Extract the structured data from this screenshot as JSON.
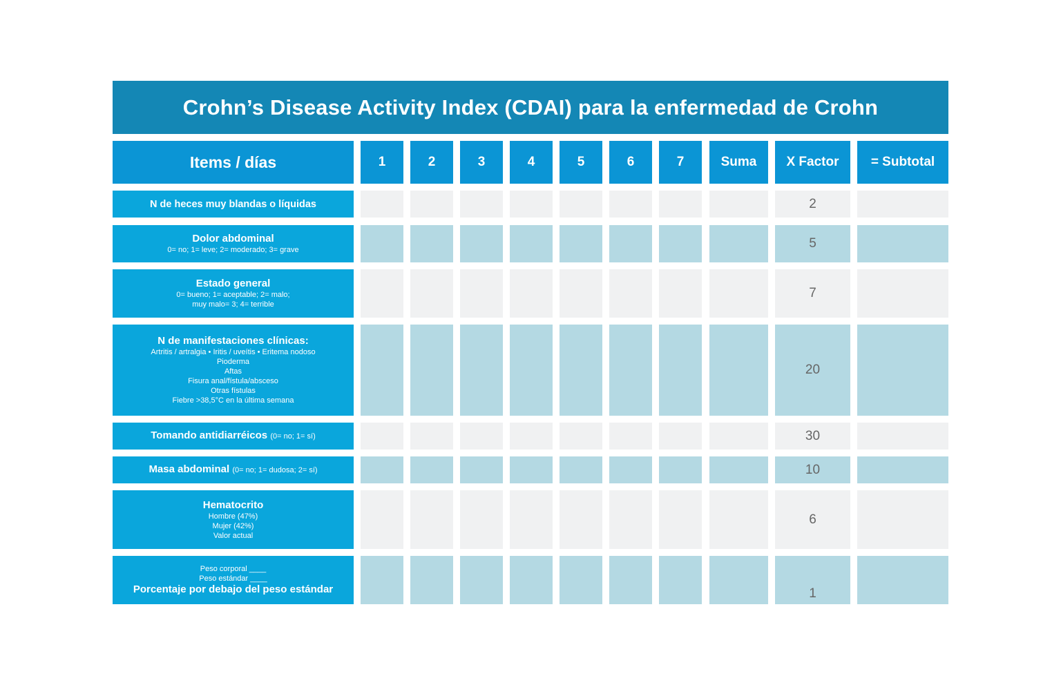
{
  "title": "Crohn’s Disease Activity Index (CDAI) para la enfermedad de Crohn",
  "columns": {
    "items": "Items / días",
    "days": [
      "1",
      "2",
      "3",
      "4",
      "5",
      "6",
      "7"
    ],
    "suma": "Suma",
    "factor": "X Factor",
    "subtotal": "= Subtotal"
  },
  "rows": [
    {
      "label": "N de heces muy blandas o líquidas",
      "note": "",
      "sub": [],
      "factor": "2"
    },
    {
      "label": "Dolor abdominal",
      "note": "",
      "sub": [
        "0= no; 1= leve; 2= moderado; 3= grave"
      ],
      "factor": "5"
    },
    {
      "label": "Estado general",
      "note": "",
      "sub": [
        "0= bueno; 1= aceptable; 2= malo;",
        "muy malo= 3; 4= terrible"
      ],
      "factor": "7"
    },
    {
      "label": "N de manifestaciones clínicas:",
      "note": "",
      "sub": [
        "Artritis / artralgia • Iritis / uveítis • Eritema nodoso",
        "Pioderma",
        "Aftas",
        "Fisura anal/fístula/absceso",
        "Otras fístulas",
        "Fiebre >38,5°C en la última semana"
      ],
      "factor": "20"
    },
    {
      "label": "Tomando antidiarréicos",
      "note": "(0= no; 1= sí)",
      "sub": [],
      "factor": "30"
    },
    {
      "label": "Masa abdominal",
      "note": "(0= no; 1= dudosa; 2= sí)",
      "sub": [],
      "factor": "10"
    },
    {
      "label": "Hematocrito",
      "note": "",
      "sub": [
        "Hombre (47%)",
        "Mujer (42%)",
        "Valor actual"
      ],
      "factor": "6"
    },
    {
      "label": "Porcentaje por debajo del peso estándar",
      "note": "",
      "sub": [
        "Peso corporal ____",
        "Peso estándar ____"
      ],
      "factor": "1"
    }
  ],
  "colors": {
    "title_bg": "#1487b5",
    "header_bg": "#0b95d5",
    "label_bg": "#0aa6dc",
    "cell_light": "#f0f1f2",
    "cell_dark": "#b4d9e3"
  }
}
